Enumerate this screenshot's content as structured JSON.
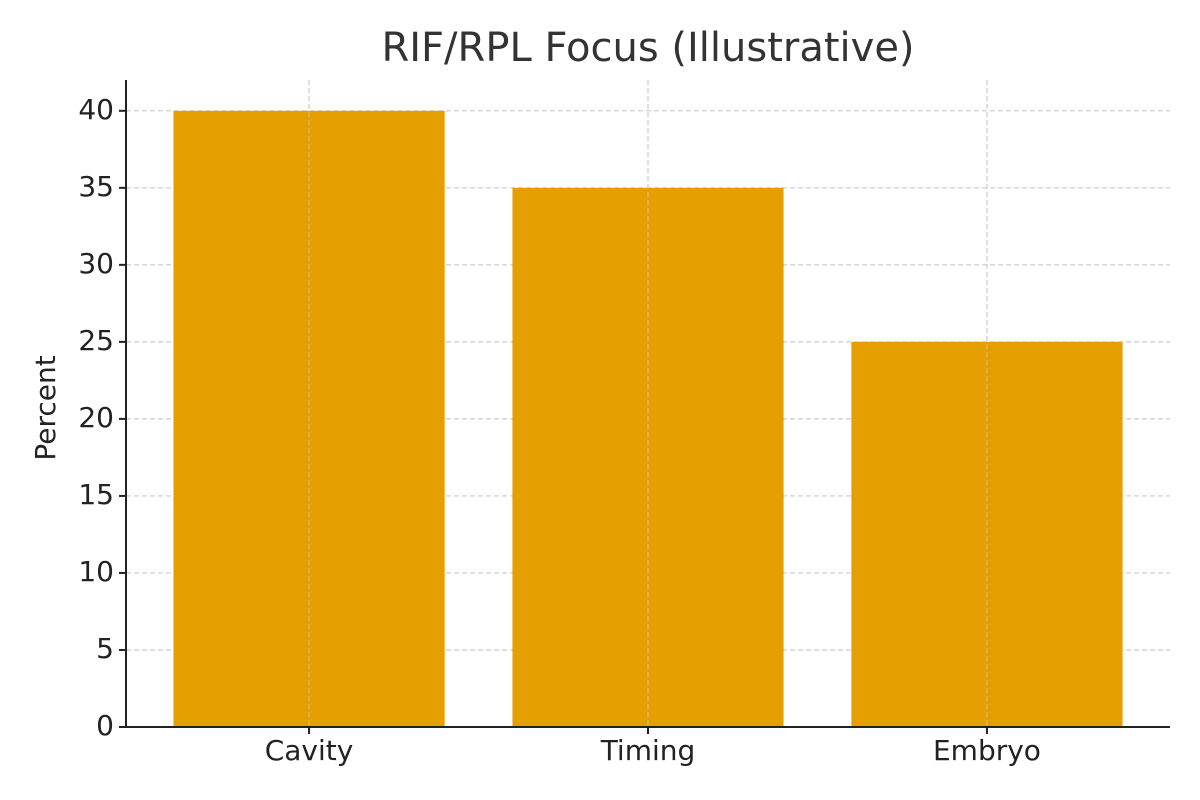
{
  "chart_data": {
    "type": "bar",
    "title": "RIF/RPL Focus (Illustrative)",
    "ylabel": "Percent",
    "categories": [
      "Cavity",
      "Timing",
      "Embryo"
    ],
    "values": [
      40,
      35,
      25
    ],
    "color": "#e69f00",
    "ylim": [
      0,
      42
    ],
    "yticks": [
      0,
      5,
      10,
      15,
      20,
      25,
      30,
      35,
      40
    ],
    "grid": true
  }
}
